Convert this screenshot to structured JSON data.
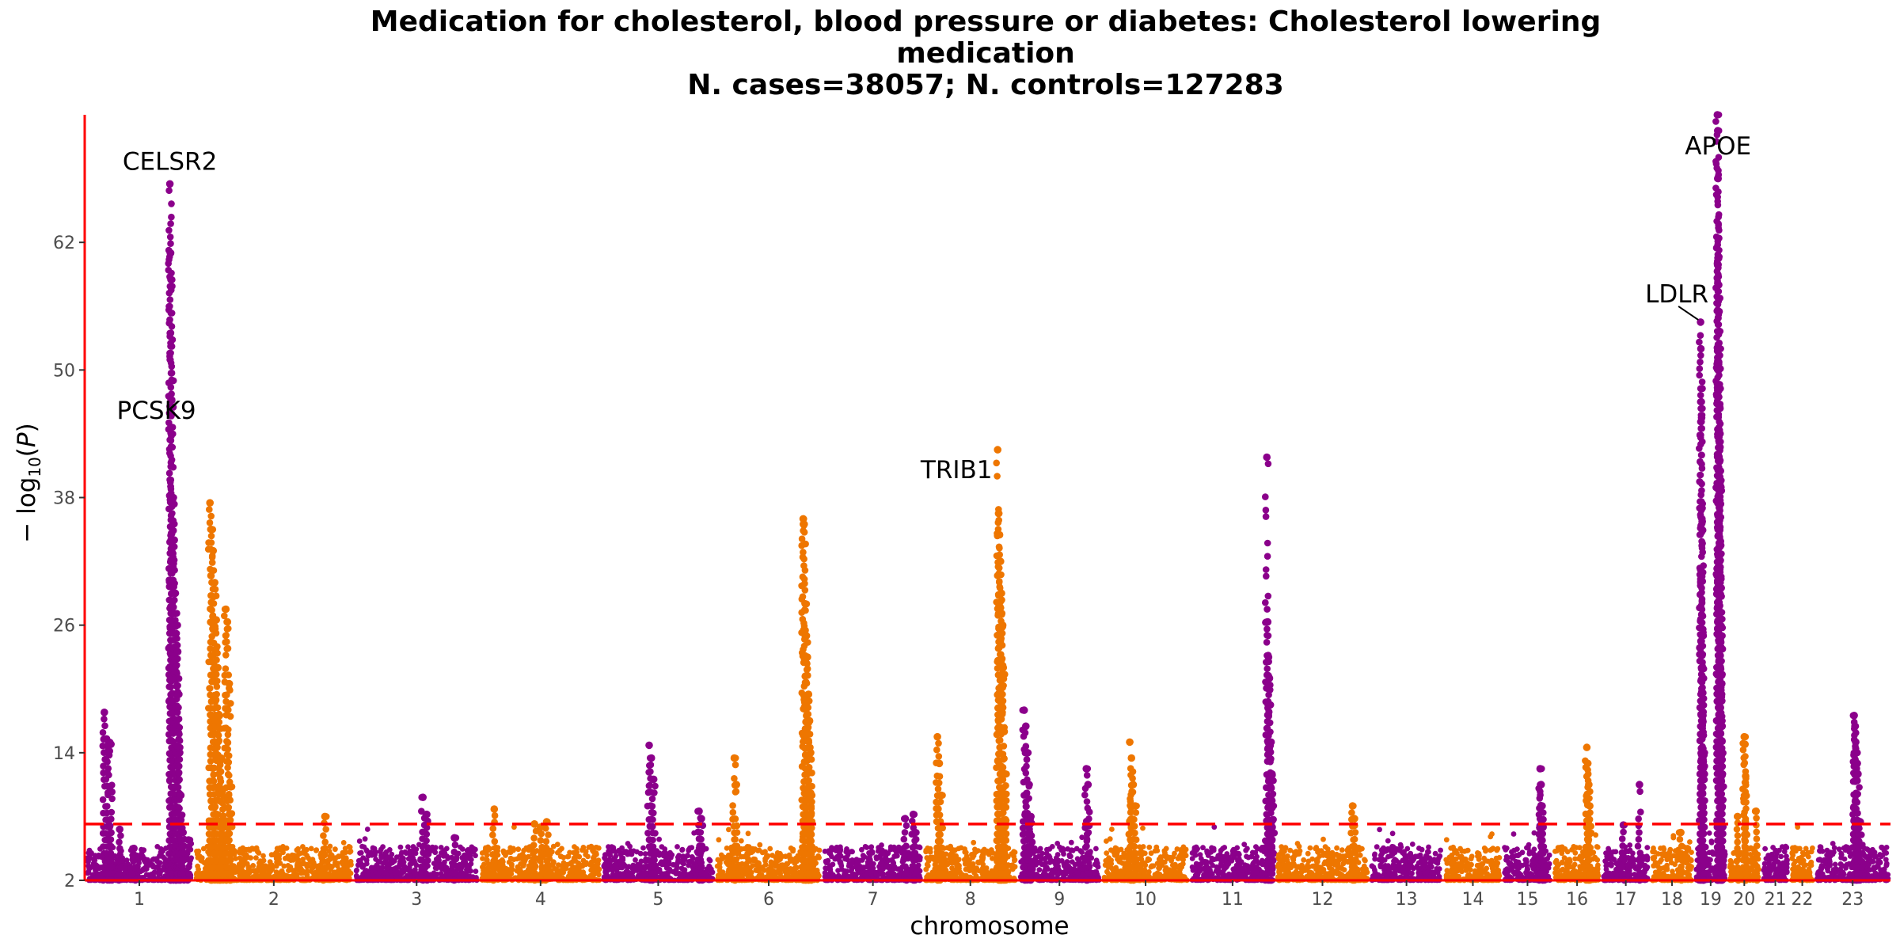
{
  "chart_data": {
    "type": "scatter",
    "plot_kind": "manhattan",
    "title_lines": [
      "Medication for cholesterol, blood pressure or diabetes: Cholesterol lowering",
      "medication",
      "N. cases=38057; N. controls=127283"
    ],
    "xlabel": "chromosome",
    "ylabel": "-log10(P)",
    "ylim": [
      2,
      74
    ],
    "yticks": [
      2,
      14,
      26,
      38,
      50,
      62
    ],
    "significance_line": 7.3,
    "colors": {
      "odd_chromosome": "#8b008b",
      "even_chromosome": "#ee7600",
      "axis": "#ff0000",
      "threshold": "#ff0000"
    },
    "grid": false,
    "legend": "none",
    "chromosomes": [
      {
        "label": "1",
        "color": "#8b008b",
        "peaks": [
          [
            0.18,
            17.8
          ],
          [
            0.2,
            15.3
          ],
          [
            0.22,
            15.0
          ],
          [
            0.24,
            14.8
          ],
          [
            0.32,
            6.8
          ],
          [
            0.45,
            5.0
          ],
          [
            0.78,
            67.5
          ],
          [
            0.786,
            61.0
          ],
          [
            0.79,
            58.5
          ],
          [
            0.8,
            49.0
          ],
          [
            0.81,
            38.0
          ],
          [
            0.82,
            34.0
          ],
          [
            0.83,
            29.0
          ],
          [
            0.84,
            26.0
          ],
          [
            0.85,
            23.5
          ],
          [
            0.86,
            19.5
          ],
          [
            0.87,
            14.0
          ],
          [
            0.88,
            10.0
          ],
          [
            0.9,
            6.5
          ],
          [
            0.95,
            5.8
          ]
        ]
      },
      {
        "label": "2",
        "color": "#ee7600",
        "peaks": [
          [
            0.1,
            37.5
          ],
          [
            0.11,
            35.0
          ],
          [
            0.12,
            33.0
          ],
          [
            0.13,
            30.0
          ],
          [
            0.14,
            26.5
          ],
          [
            0.15,
            22.0
          ],
          [
            0.16,
            17.5
          ],
          [
            0.17,
            13.5
          ],
          [
            0.18,
            10.5
          ],
          [
            0.2,
            27.5
          ],
          [
            0.21,
            26.3
          ],
          [
            0.22,
            20.5
          ],
          [
            0.23,
            10.8
          ],
          [
            0.82,
            8.0
          ]
        ]
      },
      {
        "label": "3",
        "color": "#8b008b",
        "peaks": [
          [
            0.55,
            9.8
          ],
          [
            0.58,
            8.2
          ],
          [
            0.8,
            6.0
          ]
        ]
      },
      {
        "label": "4",
        "color": "#ee7600",
        "peaks": [
          [
            0.12,
            8.7
          ],
          [
            0.45,
            7.3
          ],
          [
            0.5,
            7.0
          ],
          [
            0.55,
            7.5
          ]
        ]
      },
      {
        "label": "5",
        "color": "#8b008b",
        "peaks": [
          [
            0.42,
            14.7
          ],
          [
            0.44,
            13.5
          ],
          [
            0.46,
            11.5
          ],
          [
            0.86,
            8.5
          ],
          [
            0.88,
            7.8
          ]
        ]
      },
      {
        "label": "6",
        "color": "#ee7600",
        "peaks": [
          [
            0.18,
            13.5
          ],
          [
            0.2,
            11.0
          ],
          [
            0.82,
            36.0
          ],
          [
            0.83,
            35.5
          ],
          [
            0.84,
            28.0
          ],
          [
            0.85,
            25.0
          ],
          [
            0.86,
            23.0
          ],
          [
            0.87,
            19.5
          ],
          [
            0.88,
            17.0
          ],
          [
            0.89,
            14.0
          ],
          [
            0.9,
            10.0
          ]
        ]
      },
      {
        "label": "7",
        "color": "#8b008b",
        "peaks": [
          [
            0.82,
            7.8
          ],
          [
            0.9,
            8.2
          ],
          [
            0.92,
            6.5
          ]
        ]
      },
      {
        "label": "8",
        "color": "#ee7600",
        "peaks": [
          [
            0.15,
            15.5
          ],
          [
            0.17,
            13.0
          ],
          [
            0.19,
            10.0
          ],
          [
            0.79,
            42.5
          ],
          [
            0.8,
            36.5
          ],
          [
            0.81,
            34.5
          ],
          [
            0.82,
            32.0
          ],
          [
            0.83,
            29.0
          ],
          [
            0.84,
            26.0
          ],
          [
            0.85,
            22.0
          ],
          [
            0.86,
            16.0
          ],
          [
            0.87,
            12.0
          ]
        ]
      },
      {
        "label": "9",
        "color": "#8b008b",
        "peaks": [
          [
            0.08,
            18.0
          ],
          [
            0.1,
            16.5
          ],
          [
            0.12,
            14.0
          ],
          [
            0.14,
            11.0
          ],
          [
            0.16,
            8.0
          ],
          [
            0.82,
            12.5
          ],
          [
            0.84,
            11.0
          ]
        ]
      },
      {
        "label": "10",
        "color": "#ee7600",
        "peaks": [
          [
            0.32,
            15.0
          ],
          [
            0.34,
            13.5
          ],
          [
            0.36,
            11.0
          ],
          [
            0.38,
            9.0
          ]
        ]
      },
      {
        "label": "11",
        "color": "#8b008b",
        "peaks": [
          [
            0.9,
            41.8
          ],
          [
            0.91,
            26.3
          ],
          [
            0.92,
            23.0
          ],
          [
            0.93,
            21.0
          ],
          [
            0.94,
            18.5
          ],
          [
            0.95,
            15.0
          ],
          [
            0.96,
            12.0
          ],
          [
            0.97,
            9.0
          ]
        ]
      },
      {
        "label": "12",
        "color": "#ee7600",
        "peaks": [
          [
            0.82,
            9.0
          ],
          [
            0.84,
            7.8
          ]
        ]
      },
      {
        "label": "13",
        "color": "#8b008b",
        "peaks": []
      },
      {
        "label": "14",
        "color": "#ee7600",
        "peaks": []
      },
      {
        "label": "15",
        "color": "#8b008b",
        "peaks": [
          [
            0.75,
            12.5
          ],
          [
            0.77,
            11.0
          ],
          [
            0.79,
            9.0
          ],
          [
            0.81,
            7.0
          ]
        ]
      },
      {
        "label": "16",
        "color": "#ee7600",
        "peaks": [
          [
            0.7,
            14.5
          ],
          [
            0.72,
            13.0
          ],
          [
            0.74,
            11.0
          ],
          [
            0.76,
            9.0
          ]
        ]
      },
      {
        "label": "17",
        "color": "#8b008b",
        "peaks": [
          [
            0.45,
            7.2
          ],
          [
            0.78,
            11.0
          ]
        ]
      },
      {
        "label": "18",
        "color": "#ee7600",
        "peaks": [
          [
            0.7,
            6.5
          ]
        ]
      },
      {
        "label": "19",
        "color": "#8b008b",
        "peaks": [
          [
            0.2,
            54.5
          ],
          [
            0.21,
            52.0
          ],
          [
            0.22,
            47.0
          ],
          [
            0.23,
            45.5
          ],
          [
            0.24,
            36.0
          ],
          [
            0.25,
            25.0
          ],
          [
            0.26,
            21.0
          ],
          [
            0.27,
            17.5
          ],
          [
            0.28,
            14.0
          ],
          [
            0.3,
            12.0
          ],
          [
            0.7,
            74.0
          ],
          [
            0.71,
            72.5
          ],
          [
            0.72,
            68.0
          ],
          [
            0.73,
            60.5
          ],
          [
            0.74,
            58.0
          ],
          [
            0.75,
            55.5
          ],
          [
            0.76,
            52.0
          ],
          [
            0.77,
            46.5
          ],
          [
            0.78,
            44.0
          ],
          [
            0.79,
            40.5
          ],
          [
            0.8,
            33.5
          ],
          [
            0.81,
            29.5
          ],
          [
            0.82,
            25.0
          ],
          [
            0.83,
            20.5
          ],
          [
            0.84,
            16.5
          ],
          [
            0.85,
            12.0
          ]
        ]
      },
      {
        "label": "20",
        "color": "#ee7600",
        "peaks": [
          [
            0.5,
            15.5
          ],
          [
            0.52,
            14.8
          ],
          [
            0.54,
            11.8
          ],
          [
            0.3,
            8.0
          ],
          [
            0.85,
            8.5
          ]
        ]
      },
      {
        "label": "21",
        "color": "#8b008b",
        "peaks": []
      },
      {
        "label": "22",
        "color": "#ee7600",
        "peaks": []
      },
      {
        "label": "23",
        "color": "#8b008b",
        "peaks": [
          [
            0.52,
            17.5
          ],
          [
            0.53,
            16.5
          ],
          [
            0.54,
            15.0
          ],
          [
            0.55,
            14.0
          ],
          [
            0.56,
            13.0
          ],
          [
            0.57,
            12.0
          ],
          [
            0.6,
            7.5
          ]
        ]
      }
    ],
    "annotations": [
      {
        "text": "CELSR2",
        "chromosome": "1",
        "position": 0.78,
        "y": 67.5
      },
      {
        "text": "PCSK9",
        "chromosome": "1",
        "position": 0.28,
        "y": 48.0
      },
      {
        "text": "TRIB1",
        "chromosome": "8",
        "position": 0.79,
        "y": 42.5
      },
      {
        "text": "APOE",
        "chromosome": "19",
        "position": 0.72,
        "y": 72.5
      },
      {
        "text": "LDLR",
        "chromosome": "19",
        "position": 0.2,
        "y": 54.5
      }
    ]
  }
}
